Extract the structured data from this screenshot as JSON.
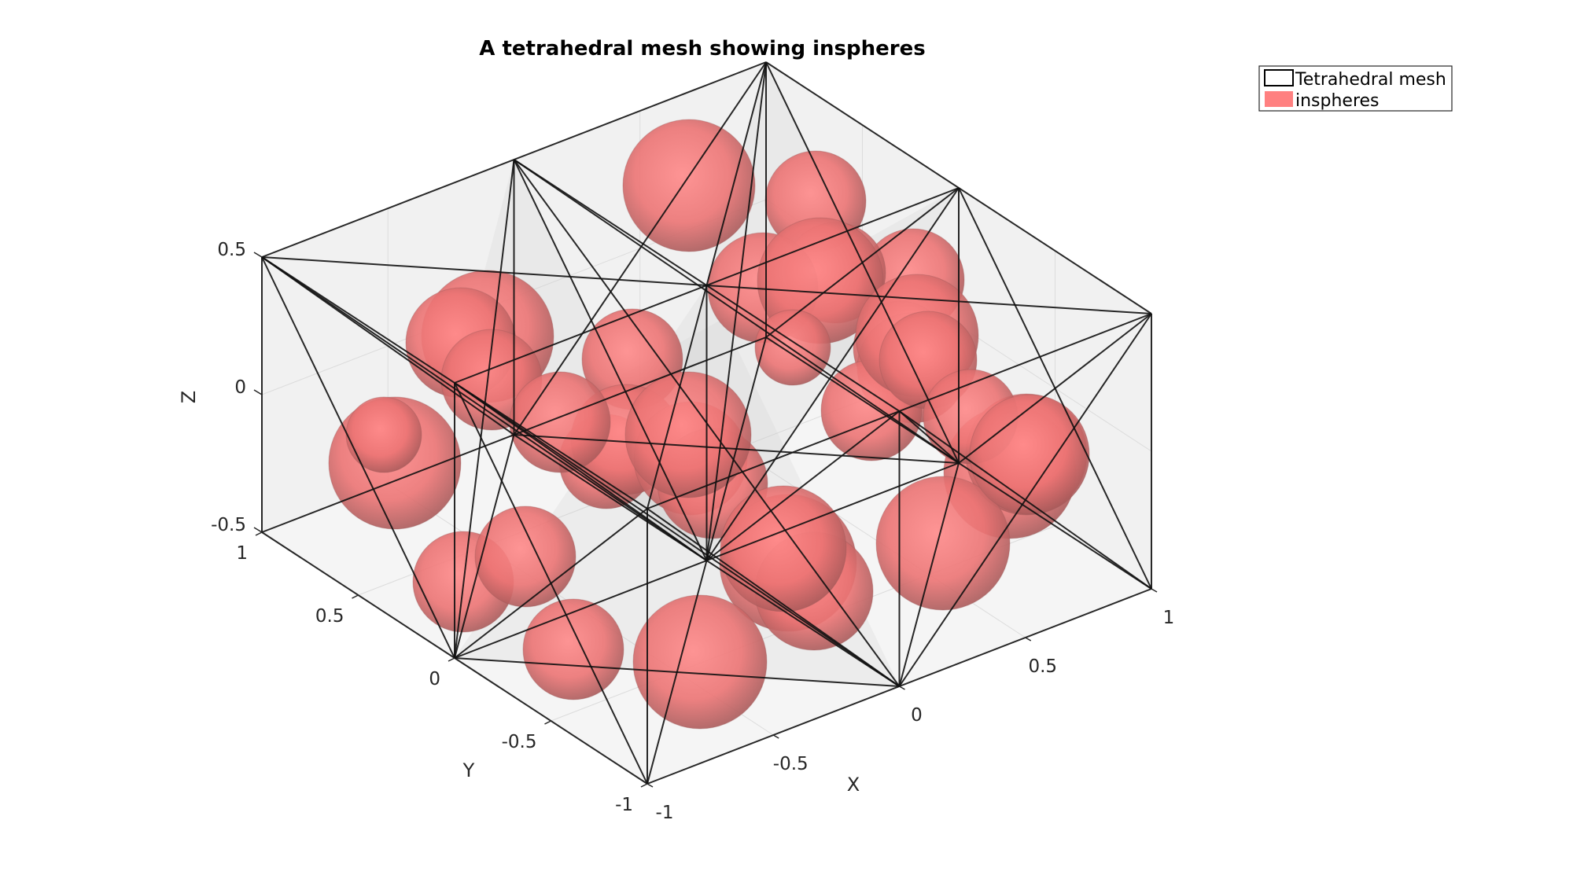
{
  "chart_data": {
    "type": "3d-mesh",
    "title": "A tetrahedral mesh showing inspheres",
    "xlabel": "X",
    "ylabel": "Y",
    "zlabel": "Z",
    "x_ticks": [
      "-1",
      "-0.5",
      "0",
      "0.5",
      "1"
    ],
    "y_ticks": [
      "-1",
      "-0.5",
      "0",
      "0.5",
      "1"
    ],
    "z_ticks": [
      "-0.5",
      "0",
      "0.5"
    ],
    "xlim": [
      -1,
      1
    ],
    "ylim": [
      -1,
      1
    ],
    "zlim": [
      -0.5,
      0.5
    ],
    "legend": {
      "position": "top-right",
      "entries": [
        {
          "label": "Tetrahedral mesh",
          "color": "#000000"
        },
        {
          "label": "inspheres",
          "color": "#ff8080"
        }
      ]
    },
    "sphere_color": "#ff8080",
    "grid": true
  }
}
